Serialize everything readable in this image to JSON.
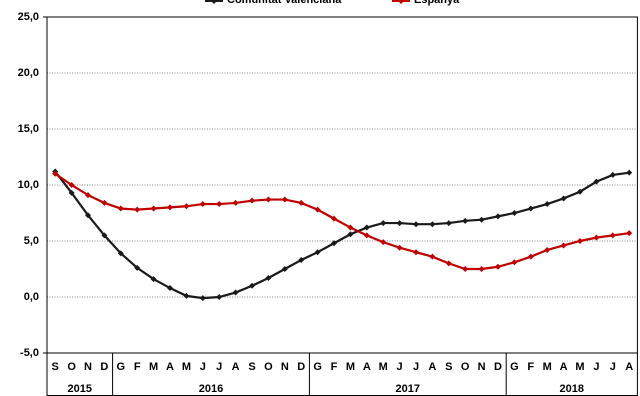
{
  "chart_data": {
    "type": "line",
    "category_groups": [
      {
        "name": "2015",
        "categories": [
          "S",
          "O",
          "N",
          "D"
        ]
      },
      {
        "name": "2016",
        "categories": [
          "G",
          "F",
          "M",
          "A",
          "M",
          "J",
          "J",
          "A",
          "S",
          "O",
          "N",
          "D"
        ]
      },
      {
        "name": "2017",
        "categories": [
          "G",
          "F",
          "M",
          "A",
          "M",
          "J",
          "J",
          "A",
          "S",
          "O",
          "N",
          "D"
        ]
      },
      {
        "name": "2018",
        "categories": [
          "G",
          "F",
          "M",
          "A",
          "M",
          "J",
          "J",
          "A"
        ]
      }
    ],
    "series": [
      {
        "name": "Comunitat Valenciana",
        "color": "#1a1a1a",
        "values": [
          11.2,
          9.3,
          7.3,
          5.5,
          3.9,
          2.6,
          1.6,
          0.8,
          0.1,
          -0.1,
          0.0,
          0.4,
          1.0,
          1.7,
          2.5,
          3.3,
          4.0,
          4.8,
          5.6,
          6.2,
          6.6,
          6.6,
          6.5,
          6.5,
          6.6,
          6.8,
          6.9,
          7.2,
          7.5,
          7.9,
          8.3,
          8.8,
          9.4,
          10.3,
          10.9,
          11.1
        ]
      },
      {
        "name": "Espanya",
        "color": "#c00000",
        "values": [
          11.0,
          10.0,
          9.1,
          8.4,
          7.9,
          7.8,
          7.9,
          8.0,
          8.1,
          8.3,
          8.3,
          8.4,
          8.6,
          8.7,
          8.7,
          8.4,
          7.8,
          7.0,
          6.2,
          5.5,
          4.9,
          4.4,
          4.0,
          3.6,
          3.0,
          2.5,
          2.5,
          2.7,
          3.1,
          3.6,
          4.2,
          4.6,
          5.0,
          5.3,
          5.5,
          5.7
        ]
      }
    ],
    "ylim": [
      -5,
      25
    ],
    "yticks": [
      {
        "value": -5,
        "label": "-5,0"
      },
      {
        "value": 0,
        "label": "0,0"
      },
      {
        "value": 5,
        "label": "5,0"
      },
      {
        "value": 10,
        "label": "10,0"
      },
      {
        "value": 15,
        "label": "15,0"
      },
      {
        "value": 20,
        "label": "20,0"
      },
      {
        "value": 25,
        "label": "25,0"
      }
    ],
    "grid": true,
    "legend": "top"
  }
}
